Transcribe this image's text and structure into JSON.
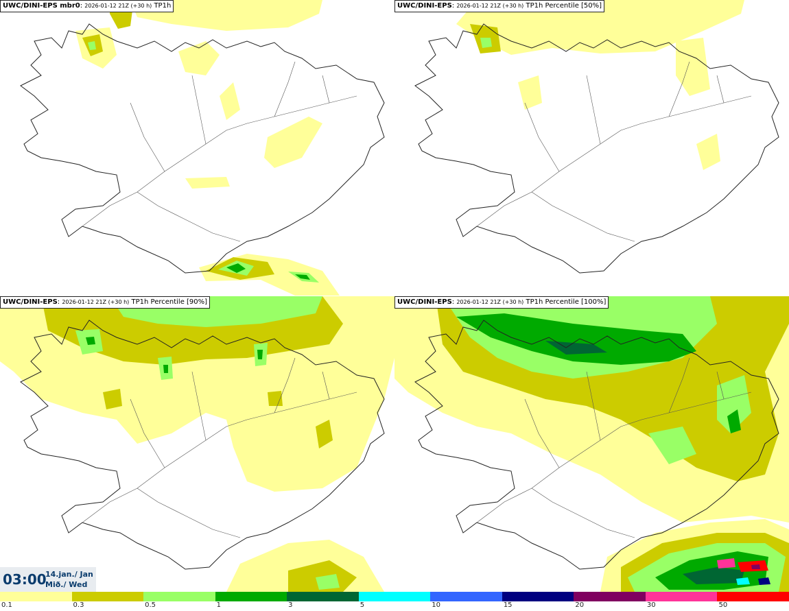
{
  "panels": [
    {
      "model": "UWC/DINI-EPS mbr0",
      "run": "2026-01-12 21Z (+30 h)",
      "field": "TP1h"
    },
    {
      "model": "UWC/DINI-EPS",
      "run": "2026-01-12 21Z (+30 h)",
      "field": "TP1h Percentile [50%]"
    },
    {
      "model": "UWC/DINI-EPS",
      "run": "2026-01-12 21Z (+30 h)",
      "field": "TP1h Percentile [90%]"
    },
    {
      "model": "UWC/DINI-EPS",
      "run": "2026-01-12 21Z (+30 h)",
      "field": "TP1h Percentile [100%]"
    }
  ],
  "valid_time": {
    "clock": "03:00",
    "date": "14.jan./ Jan",
    "weekday": "Mið./ Wed"
  },
  "colorbar": {
    "colors": [
      "#ffff99",
      "#cccc00",
      "#99ff66",
      "#00aa00",
      "#006633",
      "#00ffff",
      "#3366ff",
      "#000080",
      "#800060",
      "#ff3399",
      "#ff0000"
    ],
    "labels": [
      "0.1",
      "0.3",
      "0.5",
      "1",
      "3",
      "5",
      "10",
      "15",
      "20",
      "30",
      "50"
    ]
  },
  "colors": {
    "l1": "#ffff99",
    "l2": "#cccc00",
    "l3": "#99ff66",
    "l4": "#00aa00",
    "l5": "#006633",
    "l6": "#00ffff",
    "l7": "#000080",
    "l8": "#800060",
    "l9": "#ff3399",
    "l10": "#ff0000",
    "coast": "#222222"
  }
}
